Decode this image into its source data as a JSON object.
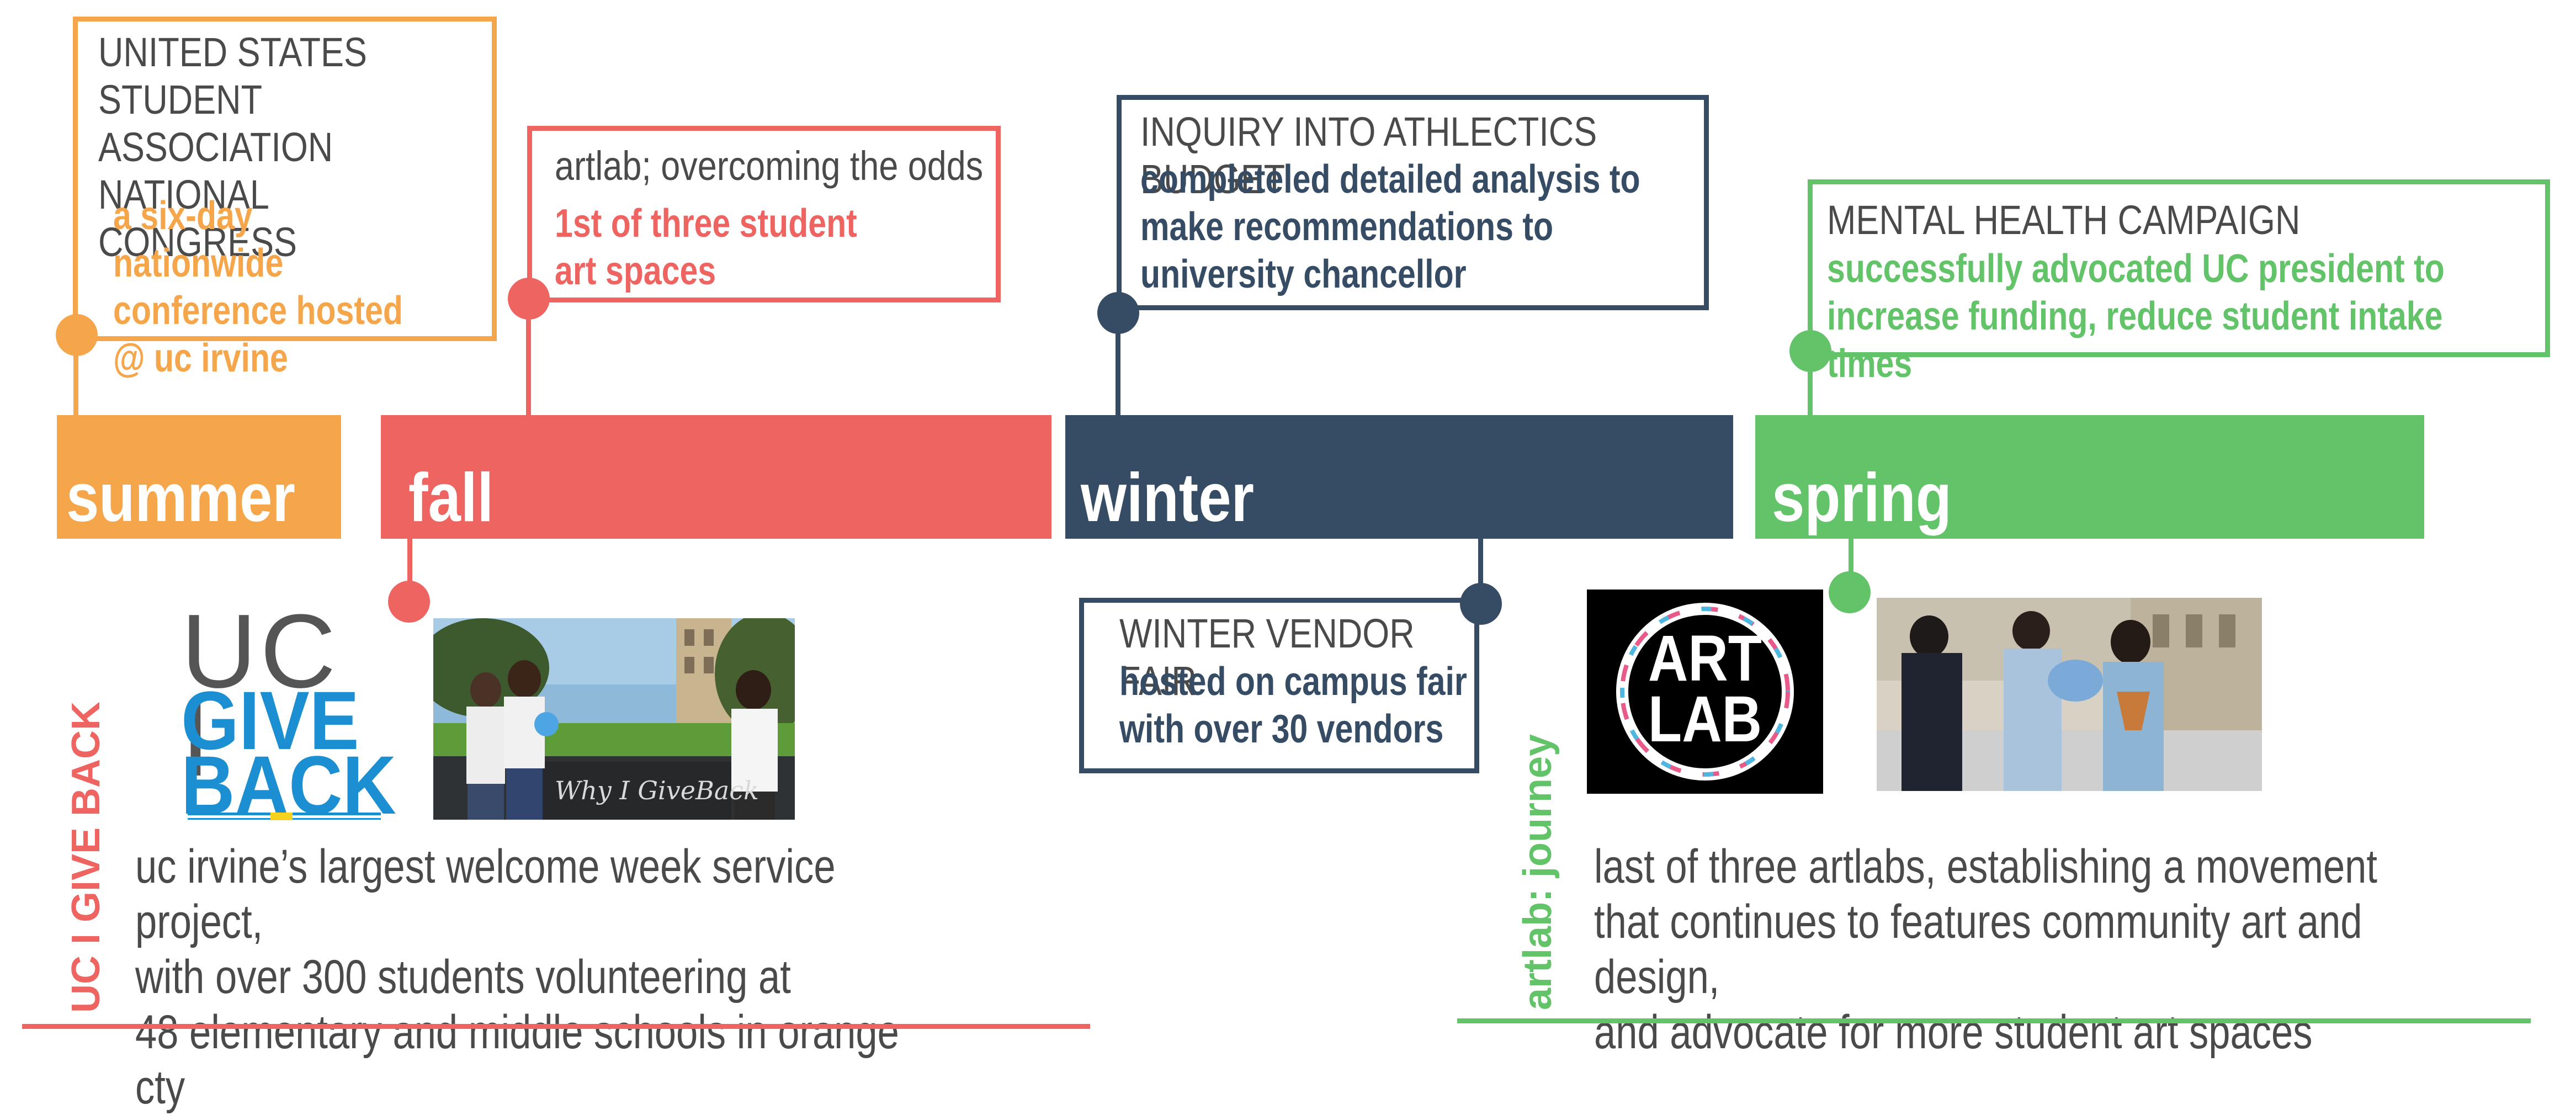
{
  "colors": {
    "summer": "#F6A64A",
    "fall": "#EE6461",
    "winter": "#364C64",
    "spring": "#63C369",
    "text": "#4a4a4a"
  },
  "seasons": {
    "summer": "summer",
    "fall": "fall",
    "winter": "winter",
    "spring": "spring"
  },
  "events": {
    "summer": {
      "title": "UNITED STATES STUDENT\nASSOCIATION NATIONAL\nCONGRESS",
      "detail": "a six-day nationwide\nconference hosted\n@ uc irvine"
    },
    "fall": {
      "title": "artlab; overcoming the odds",
      "detail": "1st of three student\nart  spaces"
    },
    "winter": {
      "title": "INQUIRY INTO ATHLECTICS BUDGET",
      "detail": "completeled detailed analysis to\nmake recommendations to\nuniversity chancellor"
    },
    "spring": {
      "title": "MENTAL HEALTH CAMPAIGN",
      "detail": "successfully advocated UC president to\nincrease funding, reduce student intake times"
    },
    "winter_fair": {
      "title": "WINTER VENDOR FAIR",
      "detail": "hosted on campus fair\nwith over 30 vendors"
    }
  },
  "give_back": {
    "vertical_label": "UC I GIVE BACK",
    "logo_line1": "UC I",
    "logo_line2": "GIVE",
    "logo_line3": "BACK",
    "chalkboard_text": "Why I GiveBack",
    "description": "uc irvine’s largest welcome week service project,\nwith over 300 students volunteering at\n48 elementary and middle schools in orange cty"
  },
  "artlab": {
    "vertical_label": "artlab: journey",
    "logo_line1": "ART",
    "logo_line2": "LAB",
    "description": "last of three artlabs, establishing a movement\nthat continues to features community art and design,\nand advocate for more student art spaces"
  }
}
